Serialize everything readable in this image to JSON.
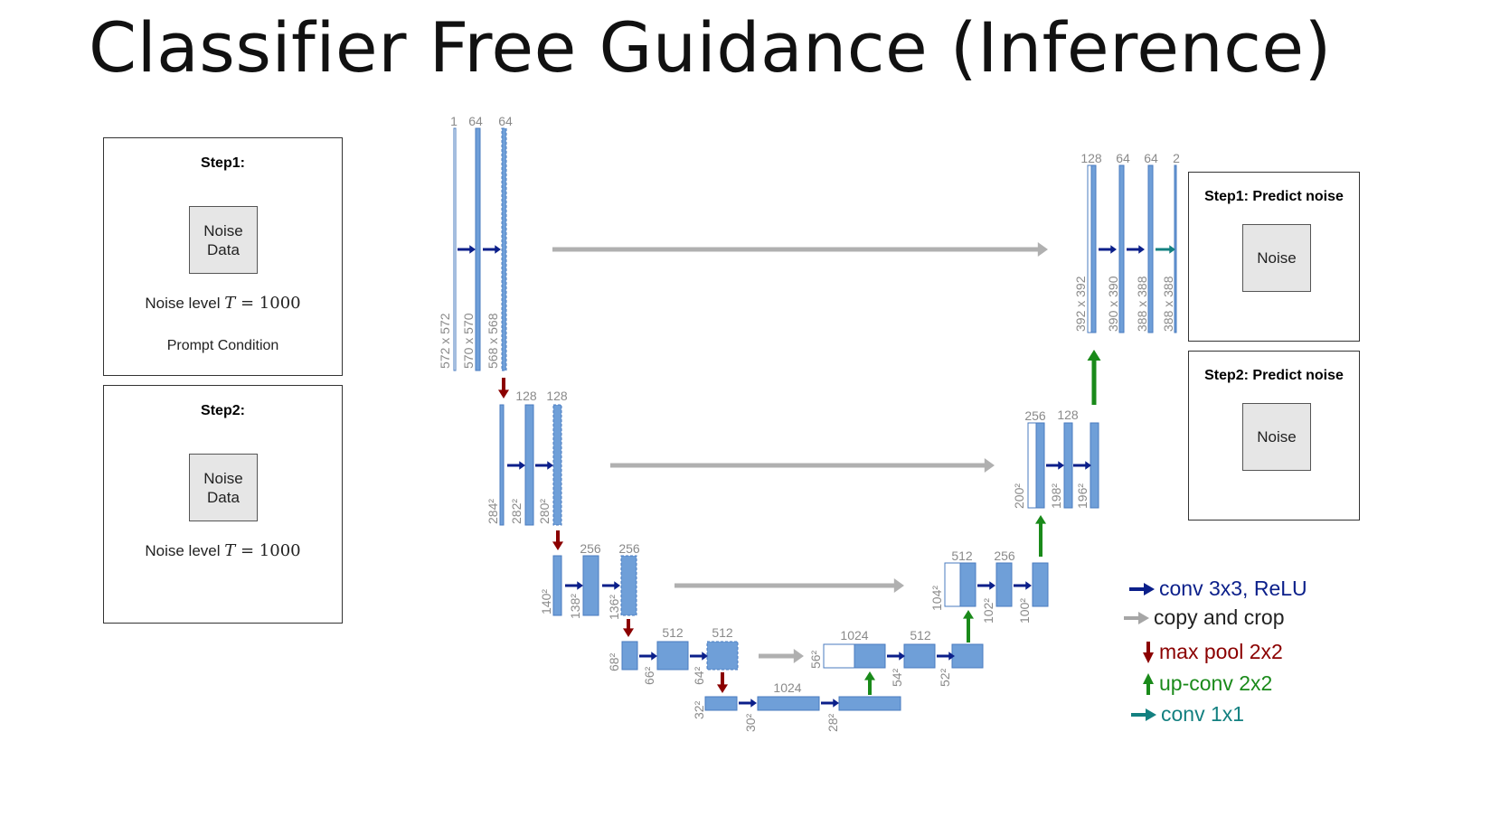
{
  "title": "Classifier Free Guidance (Inference)",
  "left_panels": [
    {
      "title": "Step1:",
      "box": [
        "Noise",
        "Data"
      ],
      "noise_level_prefix": "Noise level ",
      "noise_level_var": "T",
      "noise_level_eq": " = 1000",
      "condition": "Prompt Condition"
    },
    {
      "title": "Step2:",
      "box": [
        "Noise",
        "Data"
      ],
      "noise_level_prefix": "Noise level ",
      "noise_level_var": "T",
      "noise_level_eq": " = 1000"
    }
  ],
  "right_panels": [
    {
      "title": "Step1: Predict noise",
      "box": "Noise"
    },
    {
      "title": "Step2: Predict noise",
      "box": "Noise"
    }
  ],
  "legend": [
    {
      "label": "conv 3x3, ReLU",
      "color": "#0b1f8a",
      "icon": "arrow-right-icon"
    },
    {
      "label": "copy and crop",
      "color": "#a6a6a6",
      "icon": "arrow-right-icon"
    },
    {
      "label": "max pool 2x2",
      "color": "#8b0000",
      "icon": "arrow-down-icon"
    },
    {
      "label": "up-conv 2x2",
      "color": "#1a8a1a",
      "icon": "arrow-up-icon"
    },
    {
      "label": "conv 1x1",
      "color": "#138080",
      "icon": "arrow-right-icon"
    }
  ],
  "unet": {
    "channel_labels": [
      "1",
      "64",
      "64",
      "128",
      "128",
      "256",
      "256",
      "512",
      "512",
      "1024",
      "512",
      "512",
      "256",
      "256",
      "128",
      "128",
      "64",
      "64",
      "2"
    ],
    "dim_labels": [
      "572 x 572",
      "570 x 570",
      "568 x 568",
      "284²",
      "282²",
      "280²",
      "140²",
      "138²",
      "136²",
      "68²",
      "66²",
      "64²",
      "32²",
      "30²",
      "28²",
      "56²",
      "54²",
      "52²",
      "104²",
      "102²",
      "100²",
      "200²",
      "198²",
      "196²",
      "392 x 392",
      "390 x 390",
      "388 x 388",
      "388 x 388"
    ],
    "colors": {
      "block": "#6f9fd8",
      "block_border": "#4a7bbf",
      "conv": "#0b1f8a",
      "copy": "#b0b0b0",
      "pool": "#8b0000",
      "upconv": "#1a8a1a",
      "conv1x1": "#138080",
      "text": "#8a8a8a"
    }
  }
}
